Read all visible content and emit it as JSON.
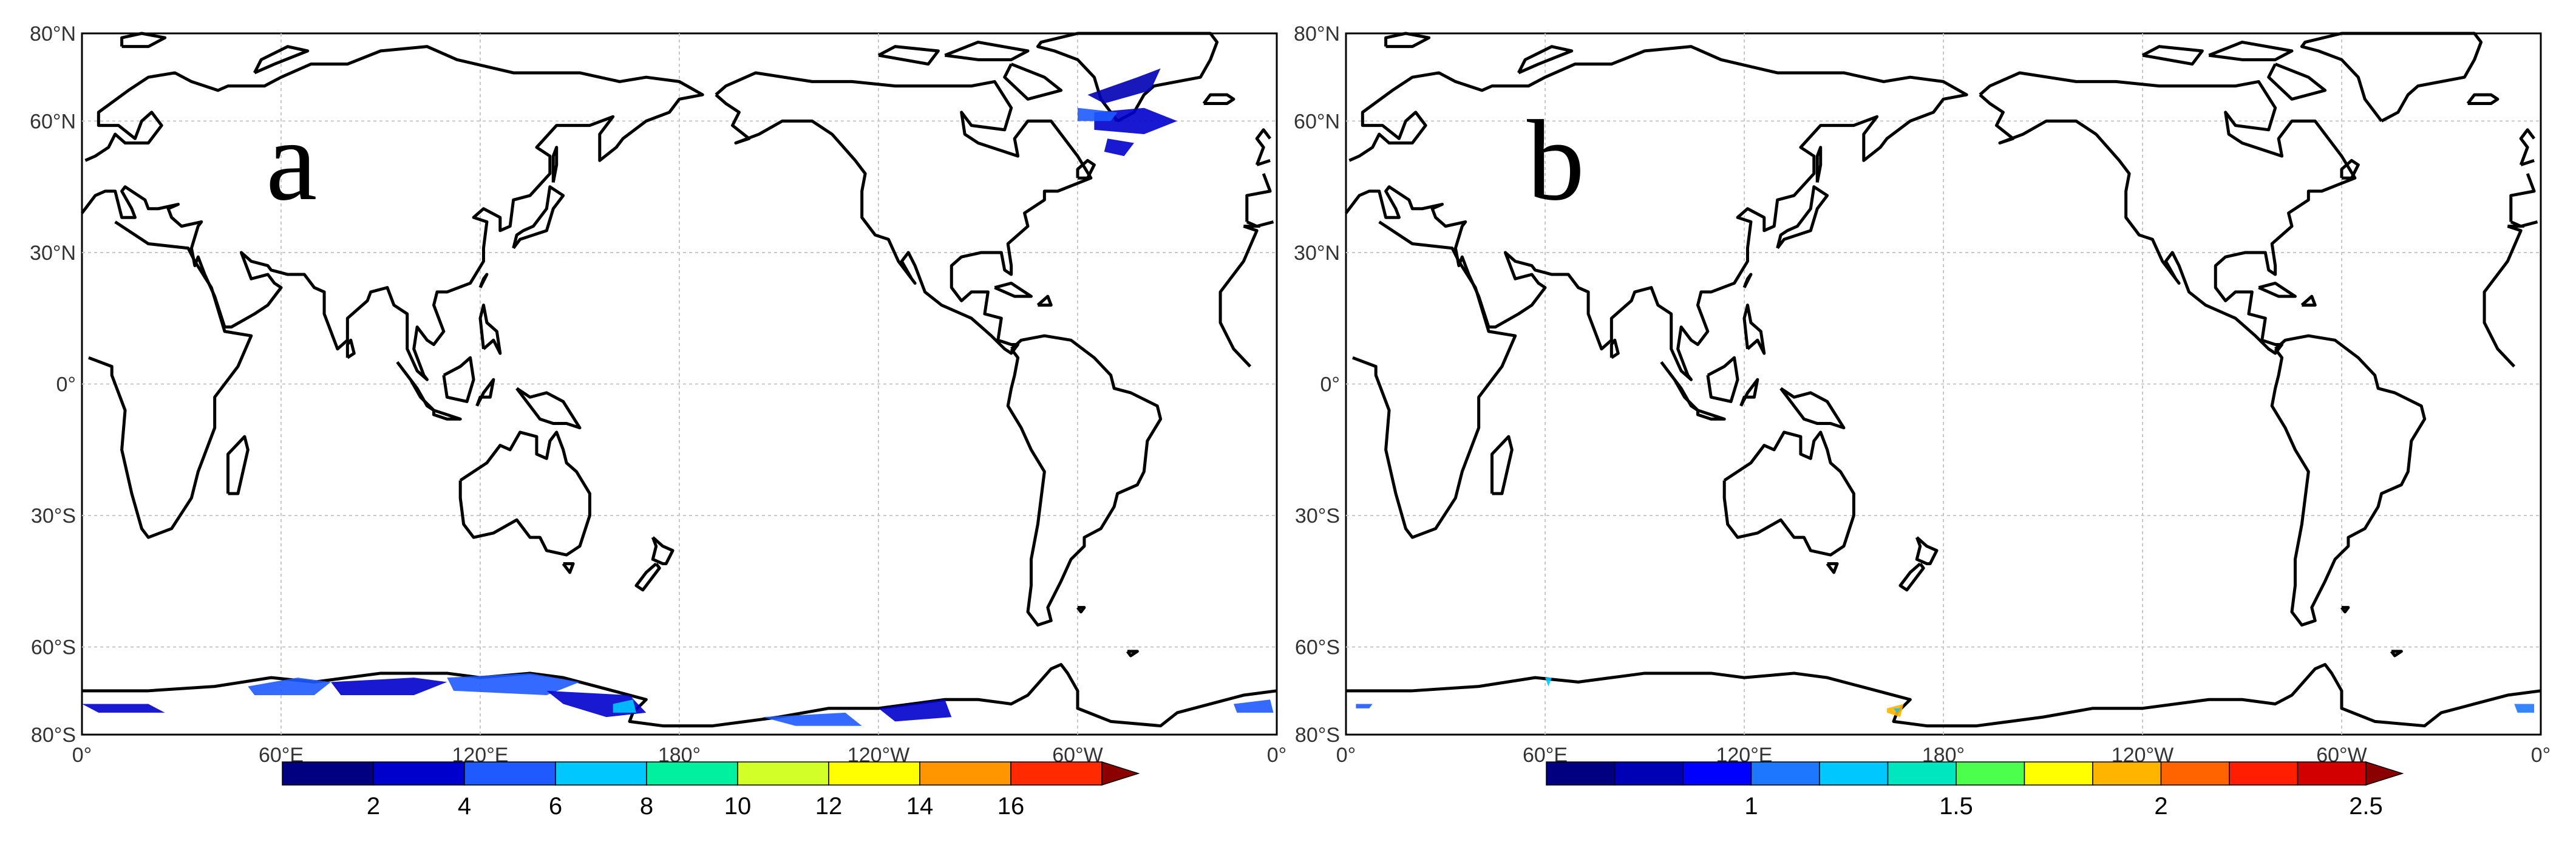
{
  "figure": {
    "panels": [
      {
        "id": "a",
        "letter": "a",
        "lat_labels": [
          "80°N",
          "60°N",
          "30°N",
          "0°",
          "30°S",
          "60°S",
          "80°S"
        ],
        "lon_labels": [
          "0°",
          "60°E",
          "120°E",
          "180°",
          "120°W",
          "60°W",
          "0°"
        ],
        "colorbar": {
          "tick_labels": [
            "2",
            "4",
            "6",
            "8",
            "10",
            "12",
            "14",
            "16"
          ],
          "colors": [
            "#000080",
            "#0000cd",
            "#1e5aff",
            "#00c8ff",
            "#00f0a0",
            "#d2ff28",
            "#ffff00",
            "#ff9600",
            "#ff2a00",
            "#8b0000"
          ]
        }
      },
      {
        "id": "b",
        "letter": "b",
        "lat_labels": [
          "80°N",
          "60°N",
          "30°N",
          "0°",
          "30°S",
          "60°S",
          "80°S"
        ],
        "lon_labels": [
          "0°",
          "60°E",
          "120°E",
          "180°",
          "120°W",
          "60°W",
          "0°"
        ],
        "colorbar": {
          "tick_labels": [
            "1",
            "1.5",
            "2",
            "2.5"
          ],
          "colors": [
            "#000080",
            "#0000b4",
            "#0000ff",
            "#1e78ff",
            "#00c8ff",
            "#00e6be",
            "#4cff4c",
            "#ffff00",
            "#ffb400",
            "#ff6400",
            "#ff1e00",
            "#d20000",
            "#8b0000"
          ]
        }
      }
    ]
  }
}
